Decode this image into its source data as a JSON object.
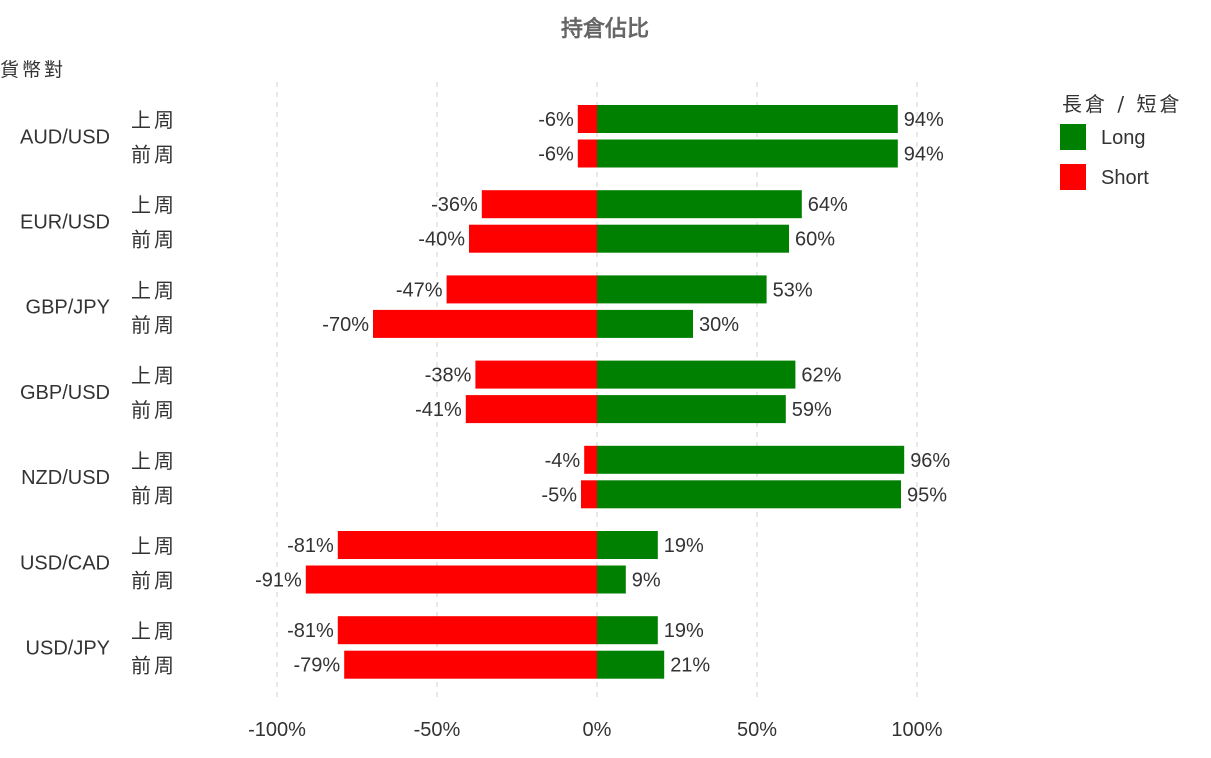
{
  "chart_data": {
    "type": "bar",
    "orientation": "horizontal",
    "stacked": "diverging",
    "title": "持倉佔比",
    "ylabel": "貨幣對",
    "xlim": [
      -100,
      100
    ],
    "xticks": [
      -100,
      -50,
      0,
      50,
      100
    ],
    "xtick_labels": [
      "-100%",
      "-50%",
      "0%",
      "50%",
      "100%"
    ],
    "grid": "vertical-dashed",
    "legend": {
      "title": "長倉 / 短倉",
      "position": "right",
      "entries": [
        {
          "name": "Long",
          "color": "#008000"
        },
        {
          "name": "Short",
          "color": "#ff0000"
        }
      ]
    },
    "groups": [
      {
        "pair": "AUD/USD",
        "rows": [
          {
            "period": "上周",
            "long": 94,
            "short": -6,
            "long_label": "94%",
            "short_label": "-6%"
          },
          {
            "period": "前周",
            "long": 94,
            "short": -6,
            "long_label": "94%",
            "short_label": "-6%"
          }
        ]
      },
      {
        "pair": "EUR/USD",
        "rows": [
          {
            "period": "上周",
            "long": 64,
            "short": -36,
            "long_label": "64%",
            "short_label": "-36%"
          },
          {
            "period": "前周",
            "long": 60,
            "short": -40,
            "long_label": "60%",
            "short_label": "-40%"
          }
        ]
      },
      {
        "pair": "GBP/JPY",
        "rows": [
          {
            "period": "上周",
            "long": 53,
            "short": -47,
            "long_label": "53%",
            "short_label": "-47%"
          },
          {
            "period": "前周",
            "long": 30,
            "short": -70,
            "long_label": "30%",
            "short_label": "-70%"
          }
        ]
      },
      {
        "pair": "GBP/USD",
        "rows": [
          {
            "period": "上周",
            "long": 62,
            "short": -38,
            "long_label": "62%",
            "short_label": "-38%"
          },
          {
            "period": "前周",
            "long": 59,
            "short": -41,
            "long_label": "59%",
            "short_label": "-41%"
          }
        ]
      },
      {
        "pair": "NZD/USD",
        "rows": [
          {
            "period": "上周",
            "long": 96,
            "short": -4,
            "long_label": "96%",
            "short_label": "-4%"
          },
          {
            "period": "前周",
            "long": 95,
            "short": -5,
            "long_label": "95%",
            "short_label": "-5%"
          }
        ]
      },
      {
        "pair": "USD/CAD",
        "rows": [
          {
            "period": "上周",
            "long": 19,
            "short": -81,
            "long_label": "19%",
            "short_label": "-81%"
          },
          {
            "period": "前周",
            "long": 9,
            "short": -91,
            "long_label": "9%",
            "short_label": "-91%"
          }
        ]
      },
      {
        "pair": "USD/JPY",
        "rows": [
          {
            "period": "上周",
            "long": 19,
            "short": -81,
            "long_label": "19%",
            "short_label": "-81%"
          },
          {
            "period": "前周",
            "long": 21,
            "short": -79,
            "long_label": "21%",
            "short_label": "-79%"
          }
        ]
      }
    ]
  }
}
